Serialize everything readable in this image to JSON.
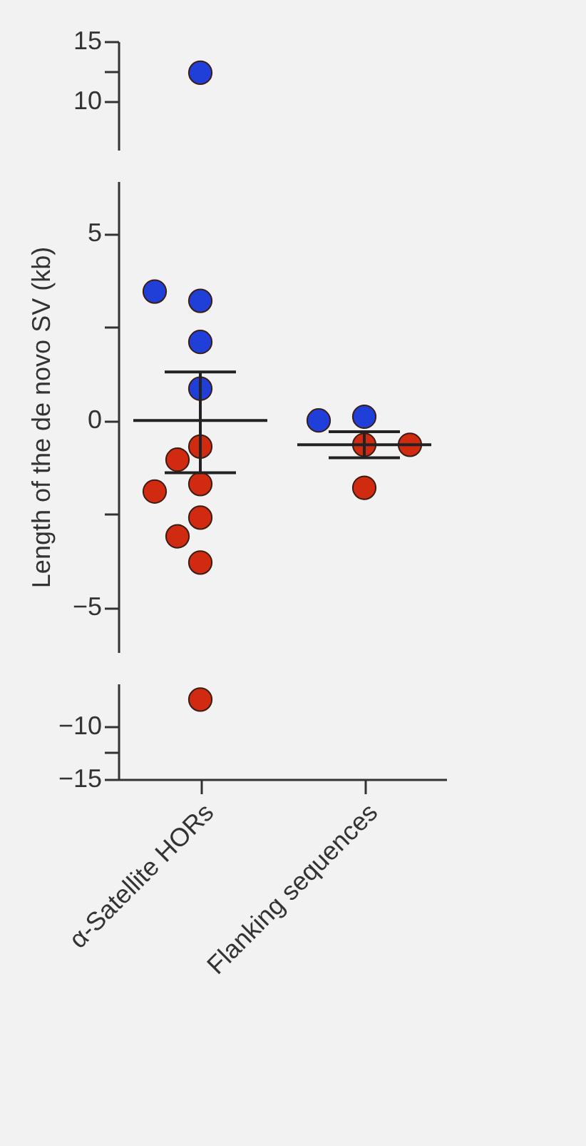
{
  "chart_data": [
    {
      "type": "scatter",
      "categories": [
        "α-Satellite HORs",
        "Flanking sequences"
      ],
      "ylim": [
        6,
        15
      ],
      "yticks": [
        10,
        {
          "value": 12.5,
          "label": null
        },
        15
      ],
      "tick_labels": "y",
      "marker": "circle",
      "series": [
        {
          "color": "#1f3fd8",
          "x": [
            "α-Satellite HORs"
          ],
          "values": [
            12.4
          ]
        }
      ]
    },
    {
      "type": "scatter",
      "categories": [
        "α-Satellite HORs",
        "Flanking sequences"
      ],
      "ylim": [
        -6.2,
        6.4
      ],
      "yticks": [
        -5,
        {
          "value": -2.5,
          "label": null
        },
        0,
        {
          "value": 2.5,
          "label": null
        },
        5
      ],
      "tick_labels": "y",
      "marker": "circle",
      "ylabel": "Length of the de novo SV (kb)",
      "series": [
        {
          "color": "#1f3fd8",
          "x": [
            "α-Satellite HORs",
            "α-Satellite HORs",
            "α-Satellite HORs",
            "α-Satellite HORs",
            "Flanking sequences",
            "Flanking sequences"
          ],
          "values": [
            3.2,
            3.45,
            2.1,
            0.85,
            0.1,
            0.0
          ]
        },
        {
          "color": "#d02a10",
          "x": [
            "α-Satellite HORs",
            "α-Satellite HORs",
            "α-Satellite HORs",
            "α-Satellite HORs",
            "α-Satellite HORs",
            "α-Satellite HORs",
            "α-Satellite HORs",
            "Flanking sequences",
            "Flanking sequences",
            "Flanking sequences"
          ],
          "values": [
            -0.7,
            -1.05,
            -1.7,
            -1.9,
            -2.6,
            -3.1,
            -3.8,
            -0.65,
            -0.65,
            -1.8
          ]
        },
        {
          "type": "box",
          "color": "#222222",
          "boxes": [
            {
              "low": -1.4,
              "q1": 0,
              "median": 0,
              "q3": 0,
              "high": 1.3
            },
            {
              "low": -1.0,
              "q1": -0.65,
              "median": -0.65,
              "q3": -0.65,
              "high": -0.3
            }
          ]
        }
      ]
    },
    {
      "type": "scatter",
      "categories": [
        "α-Satellite HORs",
        "Flanking sequences"
      ],
      "ylim": [
        -15,
        -6
      ],
      "yticks": [
        -15,
        {
          "value": -12.5,
          "label": null
        },
        -10
      ],
      "marker": "circle",
      "series": [
        {
          "color": "#d02a10",
          "x": [
            "α-Satellite HORs"
          ],
          "values": [
            -7.5
          ]
        }
      ]
    }
  ]
}
